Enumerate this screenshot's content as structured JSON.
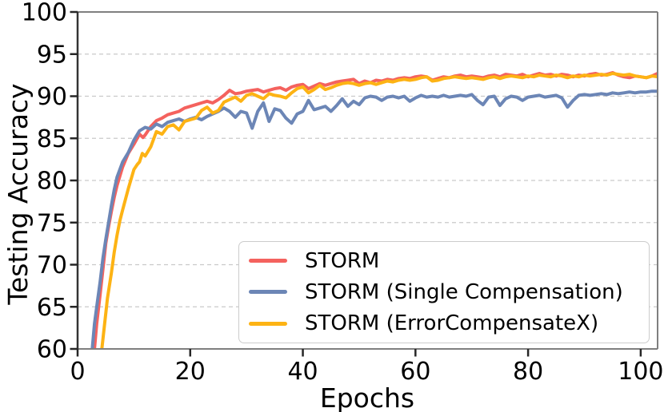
{
  "figure": {
    "background": "#ffffff",
    "text_color": "#000000"
  },
  "colors": {
    "storm": "#F4625E",
    "storm_single_compensation": "#6C86B6",
    "storm_errorcompensatex": "#FDB314",
    "grid": "#c9c9c9",
    "spine": "#7f7f7f",
    "spine_left": "#333333",
    "tick": "#262626",
    "legend_border": "#cccccc",
    "legend_bg": "#ffffff"
  },
  "chart_data": {
    "type": "line",
    "title": "",
    "xlabel": "Epochs",
    "ylabel": "Testing Accuracy",
    "xlim": [
      0,
      103
    ],
    "ylim": [
      60,
      100
    ],
    "xticks": [
      0,
      20,
      40,
      60,
      80,
      100
    ],
    "yticks": [
      60,
      65,
      70,
      75,
      80,
      85,
      90,
      95,
      100
    ],
    "grid": "horizontal-dashed",
    "legend_position": "lower-right",
    "series": [
      {
        "name": "STORM",
        "color": "#F4625E",
        "points": [
          [
            3,
            60
          ],
          [
            3.4,
            63
          ],
          [
            4,
            66.5
          ],
          [
            4.5,
            69.5
          ],
          [
            5,
            72.5
          ],
          [
            5.5,
            74.5
          ],
          [
            6,
            76.3
          ],
          [
            6.5,
            78
          ],
          [
            7,
            79.4
          ],
          [
            8,
            81.6
          ],
          [
            9,
            83.2
          ],
          [
            10,
            84.3
          ],
          [
            11,
            85.5
          ],
          [
            11.6,
            85.1
          ],
          [
            12,
            85.4
          ],
          [
            13,
            86.4
          ],
          [
            14,
            87.1
          ],
          [
            15,
            87.4
          ],
          [
            16,
            87.8
          ],
          [
            17,
            88.0
          ],
          [
            18,
            88.2
          ],
          [
            19,
            88.6
          ],
          [
            20,
            88.8
          ],
          [
            21,
            89.0
          ],
          [
            22,
            89.2
          ],
          [
            23,
            89.4
          ],
          [
            24,
            89.2
          ],
          [
            25,
            89.6
          ],
          [
            26,
            90.1
          ],
          [
            27,
            90.7
          ],
          [
            28,
            90.3
          ],
          [
            29,
            90.4
          ],
          [
            30,
            90.6
          ],
          [
            31,
            90.7
          ],
          [
            32,
            90.8
          ],
          [
            33,
            90.5
          ],
          [
            34,
            90.7
          ],
          [
            35,
            90.9
          ],
          [
            36,
            91.0
          ],
          [
            37,
            90.7
          ],
          [
            38,
            91.1
          ],
          [
            39,
            91.3
          ],
          [
            40,
            91.4
          ],
          [
            41,
            90.9
          ],
          [
            42,
            91.2
          ],
          [
            43,
            91.5
          ],
          [
            44,
            91.3
          ],
          [
            45,
            91.5
          ],
          [
            46,
            91.7
          ],
          [
            47,
            91.8
          ],
          [
            48,
            91.9
          ],
          [
            49,
            92.0
          ],
          [
            50,
            91.5
          ],
          [
            51,
            91.8
          ],
          [
            52,
            91.6
          ],
          [
            53,
            91.9
          ],
          [
            54,
            91.8
          ],
          [
            55,
            92.0
          ],
          [
            56,
            91.9
          ],
          [
            57,
            92.1
          ],
          [
            58,
            92.2
          ],
          [
            59,
            92.1
          ],
          [
            60,
            92.3
          ],
          [
            61,
            92.4
          ],
          [
            62,
            92.3
          ],
          [
            63,
            91.9
          ],
          [
            64,
            92.1
          ],
          [
            65,
            92.3
          ],
          [
            66,
            92.2
          ],
          [
            67,
            92.4
          ],
          [
            68,
            92.5
          ],
          [
            69,
            92.3
          ],
          [
            70,
            92.4
          ],
          [
            71,
            92.3
          ],
          [
            72,
            92.2
          ],
          [
            73,
            92.4
          ],
          [
            74,
            92.5
          ],
          [
            75,
            92.3
          ],
          [
            76,
            92.6
          ],
          [
            77,
            92.5
          ],
          [
            78,
            92.4
          ],
          [
            79,
            92.6
          ],
          [
            80,
            92.3
          ],
          [
            81,
            92.5
          ],
          [
            82,
            92.7
          ],
          [
            83,
            92.5
          ],
          [
            84,
            92.6
          ],
          [
            85,
            92.4
          ],
          [
            86,
            92.6
          ],
          [
            87,
            92.5
          ],
          [
            88,
            92.3
          ],
          [
            89,
            92.5
          ],
          [
            90,
            92.4
          ],
          [
            91,
            92.6
          ],
          [
            92,
            92.7
          ],
          [
            93,
            92.5
          ],
          [
            94,
            92.6
          ],
          [
            95,
            92.8
          ],
          [
            96,
            92.5
          ],
          [
            97,
            92.3
          ],
          [
            98,
            92.2
          ],
          [
            99,
            92.4
          ],
          [
            100,
            92.3
          ],
          [
            101,
            92.2
          ],
          [
            102,
            92.4
          ],
          [
            103,
            92.7
          ]
        ]
      },
      {
        "name": "STORM (Single Compensation)",
        "color": "#6C86B6",
        "points": [
          [
            2.6,
            60
          ],
          [
            3,
            63
          ],
          [
            3.5,
            65.5
          ],
          [
            4,
            68
          ],
          [
            4.5,
            70.8
          ],
          [
            5,
            73
          ],
          [
            5.5,
            75
          ],
          [
            6,
            77
          ],
          [
            6.5,
            78.9
          ],
          [
            7,
            80.4
          ],
          [
            8,
            82.2
          ],
          [
            9,
            83.3
          ],
          [
            10,
            84.8
          ],
          [
            11,
            85.9
          ],
          [
            12,
            86.3
          ],
          [
            13,
            86.1
          ],
          [
            14,
            86.7
          ],
          [
            15,
            86.4
          ],
          [
            16,
            86.9
          ],
          [
            17,
            87.1
          ],
          [
            18,
            87.3
          ],
          [
            19,
            87.0
          ],
          [
            20,
            87.3
          ],
          [
            21,
            87.5
          ],
          [
            22,
            87.2
          ],
          [
            23,
            87.6
          ],
          [
            24,
            87.9
          ],
          [
            25,
            88.2
          ],
          [
            26,
            88.6
          ],
          [
            27,
            88.2
          ],
          [
            28,
            87.5
          ],
          [
            29,
            88.2
          ],
          [
            30,
            88.0
          ],
          [
            31,
            86.2
          ],
          [
            32,
            88.2
          ],
          [
            33,
            89.2
          ],
          [
            34,
            87.0
          ],
          [
            35,
            88.5
          ],
          [
            36,
            88.3
          ],
          [
            37,
            87.4
          ],
          [
            38,
            86.8
          ],
          [
            39,
            87.9
          ],
          [
            40,
            88.2
          ],
          [
            41,
            89.5
          ],
          [
            42,
            88.4
          ],
          [
            43,
            88.6
          ],
          [
            44,
            88.8
          ],
          [
            45,
            88.2
          ],
          [
            46,
            88.9
          ],
          [
            47,
            89.7
          ],
          [
            48,
            88.8
          ],
          [
            49,
            89.4
          ],
          [
            50,
            89.0
          ],
          [
            51,
            89.8
          ],
          [
            52,
            90.0
          ],
          [
            53,
            89.9
          ],
          [
            54,
            89.5
          ],
          [
            55,
            89.9
          ],
          [
            56,
            90.0
          ],
          [
            57,
            89.8
          ],
          [
            58,
            90.0
          ],
          [
            59,
            89.4
          ],
          [
            60,
            89.8
          ],
          [
            61,
            90.1
          ],
          [
            62,
            89.9
          ],
          [
            63,
            90.0
          ],
          [
            64,
            89.9
          ],
          [
            65,
            90.1
          ],
          [
            66,
            89.9
          ],
          [
            67,
            90.0
          ],
          [
            68,
            90.1
          ],
          [
            69,
            90.0
          ],
          [
            70,
            90.2
          ],
          [
            71,
            89.5
          ],
          [
            72,
            89.0
          ],
          [
            73,
            89.9
          ],
          [
            74,
            90.0
          ],
          [
            75,
            88.9
          ],
          [
            76,
            89.7
          ],
          [
            77,
            90.0
          ],
          [
            78,
            89.9
          ],
          [
            79,
            89.5
          ],
          [
            80,
            89.9
          ],
          [
            81,
            90.0
          ],
          [
            82,
            90.1
          ],
          [
            83,
            89.9
          ],
          [
            84,
            90.0
          ],
          [
            85,
            90.1
          ],
          [
            86,
            89.8
          ],
          [
            87,
            88.7
          ],
          [
            88,
            89.5
          ],
          [
            89,
            90.1
          ],
          [
            90,
            90.2
          ],
          [
            91,
            90.1
          ],
          [
            92,
            90.2
          ],
          [
            93,
            90.3
          ],
          [
            94,
            90.2
          ],
          [
            95,
            90.4
          ],
          [
            96,
            90.3
          ],
          [
            97,
            90.4
          ],
          [
            98,
            90.5
          ],
          [
            99,
            90.4
          ],
          [
            100,
            90.5
          ],
          [
            101,
            90.5
          ],
          [
            102,
            90.6
          ],
          [
            103,
            90.6
          ]
        ]
      },
      {
        "name": "STORM (ErrorCompensateX)",
        "color": "#FDB314",
        "points": [
          [
            4.3,
            60
          ],
          [
            4.8,
            63
          ],
          [
            5.3,
            66
          ],
          [
            6,
            69
          ],
          [
            6.5,
            71.5
          ],
          [
            7,
            73.5
          ],
          [
            7.5,
            75.2
          ],
          [
            8,
            76.5
          ],
          [
            9,
            79
          ],
          [
            10,
            81.3
          ],
          [
            10.6,
            81.9
          ],
          [
            11,
            82.2
          ],
          [
            11.5,
            83.2
          ],
          [
            12,
            82.9
          ],
          [
            13,
            84.0
          ],
          [
            14,
            85.8
          ],
          [
            15,
            85.5
          ],
          [
            16,
            86.4
          ],
          [
            17,
            86.6
          ],
          [
            18,
            86.0
          ],
          [
            19,
            87.0
          ],
          [
            20,
            87.2
          ],
          [
            21,
            87.4
          ],
          [
            22,
            88.3
          ],
          [
            23,
            88.7
          ],
          [
            24,
            88.0
          ],
          [
            25,
            88.3
          ],
          [
            26,
            89.3
          ],
          [
            27,
            89.6
          ],
          [
            28,
            89.9
          ],
          [
            29,
            89.4
          ],
          [
            30,
            90.1
          ],
          [
            31,
            90.3
          ],
          [
            32,
            90.0
          ],
          [
            33,
            89.7
          ],
          [
            34,
            90.3
          ],
          [
            35,
            90.1
          ],
          [
            36,
            90.0
          ],
          [
            37,
            89.8
          ],
          [
            38,
            90.4
          ],
          [
            39,
            90.9
          ],
          [
            40,
            91.1
          ],
          [
            41,
            90.4
          ],
          [
            42,
            90.8
          ],
          [
            43,
            91.3
          ],
          [
            44,
            90.8
          ],
          [
            45,
            91.0
          ],
          [
            46,
            91.3
          ],
          [
            47,
            91.5
          ],
          [
            48,
            91.6
          ],
          [
            49,
            91.5
          ],
          [
            50,
            91.3
          ],
          [
            51,
            91.5
          ],
          [
            52,
            91.6
          ],
          [
            53,
            91.4
          ],
          [
            54,
            91.6
          ],
          [
            55,
            91.8
          ],
          [
            56,
            91.7
          ],
          [
            57,
            91.9
          ],
          [
            58,
            92.0
          ],
          [
            59,
            91.9
          ],
          [
            60,
            92.0
          ],
          [
            61,
            92.2
          ],
          [
            62,
            92.3
          ],
          [
            63,
            91.8
          ],
          [
            64,
            91.9
          ],
          [
            65,
            92.1
          ],
          [
            66,
            92.2
          ],
          [
            67,
            92.3
          ],
          [
            68,
            92.2
          ],
          [
            69,
            92.1
          ],
          [
            70,
            92.2
          ],
          [
            71,
            92.1
          ],
          [
            72,
            92.0
          ],
          [
            73,
            92.2
          ],
          [
            74,
            92.3
          ],
          [
            75,
            92.1
          ],
          [
            76,
            92.3
          ],
          [
            77,
            92.4
          ],
          [
            78,
            92.3
          ],
          [
            79,
            92.2
          ],
          [
            80,
            92.4
          ],
          [
            81,
            92.3
          ],
          [
            82,
            92.5
          ],
          [
            83,
            92.4
          ],
          [
            84,
            92.3
          ],
          [
            85,
            92.5
          ],
          [
            86,
            92.4
          ],
          [
            87,
            92.2
          ],
          [
            88,
            92.4
          ],
          [
            89,
            92.3
          ],
          [
            90,
            92.5
          ],
          [
            91,
            92.4
          ],
          [
            92,
            92.5
          ],
          [
            93,
            92.6
          ],
          [
            94,
            92.5
          ],
          [
            95,
            92.7
          ],
          [
            96,
            92.6
          ],
          [
            97,
            92.5
          ],
          [
            98,
            92.6
          ],
          [
            99,
            92.4
          ],
          [
            100,
            92.3
          ],
          [
            101,
            92.2
          ],
          [
            102,
            92.4
          ],
          [
            103,
            92.3
          ]
        ]
      }
    ]
  },
  "legend": {
    "items": [
      "STORM",
      "STORM (Single Compensation)",
      "STORM (ErrorCompensateX)"
    ]
  }
}
